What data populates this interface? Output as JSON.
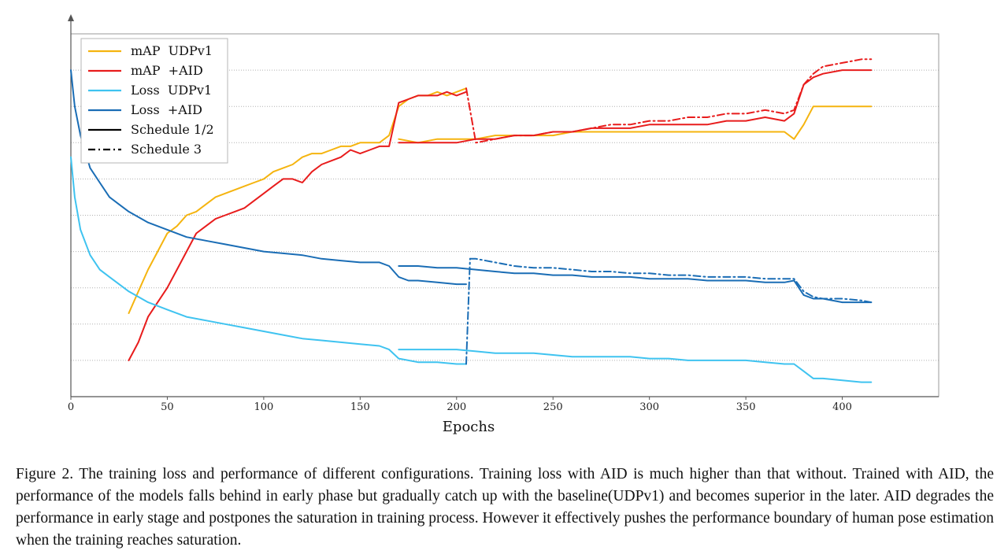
{
  "chart_data": {
    "type": "line",
    "xlabel": "Epochs",
    "ylabel": "",
    "xlim": [
      0,
      450
    ],
    "ylim": [
      0,
      10
    ],
    "xticks": [
      0,
      50,
      100,
      150,
      200,
      250,
      300,
      350,
      400
    ],
    "grid": "horizontal dotted",
    "legend": "top-left",
    "legend_entries": [
      {
        "label": "mAP  UDPv1",
        "color": "#f5b40f",
        "dash": "solid"
      },
      {
        "label": "mAP  +AID",
        "color": "#e81c1c",
        "dash": "solid"
      },
      {
        "label": "Loss  UDPv1",
        "color": "#3fc3f0",
        "dash": "solid"
      },
      {
        "label": "Loss  +AID",
        "color": "#1a6db5",
        "dash": "solid"
      },
      {
        "label": "Schedule 1/2",
        "color": "#000000",
        "dash": "solid"
      },
      {
        "label": "Schedule 3",
        "color": "#000000",
        "dash": "dashdot"
      }
    ],
    "series": [
      {
        "id": "map-udp-s12",
        "name": "mAP  UDPv1 (Schedule 1/2)",
        "color": "#f5b40f",
        "dash": "solid",
        "x": [
          30,
          35,
          40,
          45,
          50,
          55,
          60,
          65,
          70,
          75,
          80,
          85,
          90,
          95,
          100,
          105,
          110,
          115,
          120,
          125,
          130,
          135,
          140,
          145,
          150,
          155,
          160,
          165,
          170,
          175,
          180,
          185,
          190,
          195,
          200,
          205
        ],
        "y": [
          2.3,
          2.9,
          3.5,
          4.0,
          4.5,
          4.7,
          5.0,
          5.1,
          5.3,
          5.5,
          5.6,
          5.7,
          5.8,
          5.9,
          6.0,
          6.2,
          6.3,
          6.4,
          6.6,
          6.7,
          6.7,
          6.8,
          6.9,
          6.9,
          7.0,
          7.0,
          7.0,
          7.2,
          8.0,
          8.2,
          8.3,
          8.3,
          8.4,
          8.3,
          8.4,
          8.5
        ]
      },
      {
        "id": "map-udp-s3",
        "name": "mAP  UDPv1 (Schedule 3)",
        "color": "#f5b40f",
        "dash": "solid",
        "x": [
          170,
          180,
          190,
          200,
          210,
          220,
          230,
          240,
          250,
          260,
          270,
          280,
          290,
          300,
          310,
          320,
          330,
          340,
          350,
          360,
          370,
          375,
          380,
          385,
          390,
          400,
          410,
          415
        ],
        "y": [
          7.1,
          7.0,
          7.1,
          7.1,
          7.1,
          7.2,
          7.2,
          7.2,
          7.2,
          7.3,
          7.3,
          7.3,
          7.3,
          7.3,
          7.3,
          7.3,
          7.3,
          7.3,
          7.3,
          7.3,
          7.3,
          7.1,
          7.5,
          8.0,
          8.0,
          8.0,
          8.0,
          8.0
        ]
      },
      {
        "id": "map-aid-s12",
        "name": "mAP  +AID (Schedule 1/2)",
        "color": "#e81c1c",
        "dash": "solid",
        "x": [
          30,
          35,
          40,
          45,
          50,
          55,
          60,
          65,
          70,
          75,
          80,
          85,
          90,
          95,
          100,
          105,
          110,
          115,
          120,
          125,
          130,
          135,
          140,
          145,
          150,
          155,
          160,
          165,
          170,
          175,
          180,
          185,
          190,
          195,
          200,
          205
        ],
        "y": [
          1.0,
          1.5,
          2.2,
          2.6,
          3.0,
          3.5,
          4.0,
          4.5,
          4.7,
          4.9,
          5.0,
          5.1,
          5.2,
          5.4,
          5.6,
          5.8,
          6.0,
          6.0,
          5.9,
          6.2,
          6.4,
          6.5,
          6.6,
          6.8,
          6.7,
          6.8,
          6.9,
          6.9,
          8.1,
          8.2,
          8.3,
          8.3,
          8.3,
          8.4,
          8.3,
          8.4
        ]
      },
      {
        "id": "map-aid-s3",
        "name": "mAP  +AID (Schedule 3)",
        "color": "#e81c1c",
        "dash": "solid",
        "x": [
          170,
          180,
          190,
          200,
          210,
          220,
          230,
          240,
          250,
          260,
          270,
          280,
          290,
          300,
          310,
          320,
          330,
          340,
          350,
          360,
          370,
          375,
          380,
          385,
          390,
          400,
          410,
          415
        ],
        "y": [
          7.0,
          7.0,
          7.0,
          7.0,
          7.1,
          7.1,
          7.2,
          7.2,
          7.3,
          7.3,
          7.4,
          7.4,
          7.4,
          7.5,
          7.5,
          7.5,
          7.5,
          7.6,
          7.6,
          7.7,
          7.6,
          7.8,
          8.6,
          8.8,
          8.9,
          9.0,
          9.0,
          9.0
        ]
      },
      {
        "id": "map-aid-s3-dash",
        "name": "mAP  +AID (Schedule 3, dash-dot)",
        "color": "#e81c1c",
        "dash": "dashdot",
        "x": [
          205,
          210,
          220,
          230,
          240,
          250,
          260,
          270,
          280,
          290,
          300,
          310,
          320,
          330,
          340,
          350,
          360,
          370,
          375,
          380,
          385,
          390,
          400,
          410,
          415
        ],
        "y": [
          8.5,
          7.0,
          7.1,
          7.2,
          7.2,
          7.3,
          7.3,
          7.4,
          7.5,
          7.5,
          7.6,
          7.6,
          7.7,
          7.7,
          7.8,
          7.8,
          7.9,
          7.8,
          7.9,
          8.6,
          8.9,
          9.1,
          9.2,
          9.3,
          9.3
        ]
      },
      {
        "id": "loss-udp-s12",
        "name": "Loss  UDPv1 (Schedule 1/2)",
        "color": "#3fc3f0",
        "dash": "solid",
        "x": [
          0,
          2,
          5,
          10,
          15,
          20,
          25,
          30,
          40,
          50,
          60,
          70,
          80,
          90,
          100,
          110,
          120,
          130,
          140,
          150,
          160,
          165,
          170,
          175,
          180,
          190,
          200,
          205
        ],
        "y": [
          6.6,
          5.5,
          4.6,
          3.9,
          3.5,
          3.3,
          3.1,
          2.9,
          2.6,
          2.4,
          2.2,
          2.1,
          2.0,
          1.9,
          1.8,
          1.7,
          1.6,
          1.55,
          1.5,
          1.45,
          1.4,
          1.3,
          1.05,
          1.0,
          0.95,
          0.95,
          0.9,
          0.9
        ]
      },
      {
        "id": "loss-udp-s3",
        "name": "Loss  UDPv1 (Schedule 3)",
        "color": "#3fc3f0",
        "dash": "solid",
        "x": [
          170,
          180,
          190,
          200,
          210,
          220,
          230,
          240,
          250,
          260,
          270,
          280,
          290,
          300,
          310,
          320,
          330,
          340,
          350,
          360,
          370,
          375,
          380,
          385,
          390,
          400,
          410,
          415
        ],
        "y": [
          1.3,
          1.3,
          1.3,
          1.3,
          1.25,
          1.2,
          1.2,
          1.2,
          1.15,
          1.1,
          1.1,
          1.1,
          1.1,
          1.05,
          1.05,
          1.0,
          1.0,
          1.0,
          1.0,
          0.95,
          0.9,
          0.9,
          0.7,
          0.5,
          0.5,
          0.45,
          0.4,
          0.4
        ]
      },
      {
        "id": "loss-udp-s3-dash",
        "name": "Loss  UDPv1 (Schedule 3, dash-dot)",
        "color": "#1a6db5",
        "dash": "dashdot",
        "x": [
          205,
          207
        ],
        "y": [
          0.9,
          3.8
        ]
      },
      {
        "id": "loss-aid-s12",
        "name": "Loss  +AID (Schedule 1/2)",
        "color": "#1a6db5",
        "dash": "solid",
        "x": [
          0,
          2,
          5,
          10,
          15,
          20,
          25,
          30,
          40,
          50,
          60,
          70,
          80,
          90,
          100,
          110,
          120,
          130,
          140,
          150,
          160,
          165,
          170,
          175,
          180,
          190,
          200,
          205
        ],
        "y": [
          9.0,
          8.0,
          7.2,
          6.3,
          5.9,
          5.5,
          5.3,
          5.1,
          4.8,
          4.6,
          4.4,
          4.3,
          4.2,
          4.1,
          4.0,
          3.95,
          3.9,
          3.8,
          3.75,
          3.7,
          3.7,
          3.6,
          3.3,
          3.2,
          3.2,
          3.15,
          3.1,
          3.1
        ]
      },
      {
        "id": "loss-aid-s3",
        "name": "Loss  +AID (Schedule 3)",
        "color": "#1a6db5",
        "dash": "solid",
        "x": [
          170,
          180,
          190,
          200,
          210,
          220,
          230,
          240,
          250,
          260,
          270,
          280,
          290,
          300,
          310,
          320,
          330,
          340,
          350,
          360,
          370,
          375,
          380,
          385,
          390,
          400,
          410,
          415
        ],
        "y": [
          3.6,
          3.6,
          3.55,
          3.55,
          3.5,
          3.45,
          3.4,
          3.4,
          3.35,
          3.35,
          3.3,
          3.3,
          3.3,
          3.25,
          3.25,
          3.25,
          3.2,
          3.2,
          3.2,
          3.15,
          3.15,
          3.2,
          2.8,
          2.7,
          2.7,
          2.6,
          2.6,
          2.6
        ]
      },
      {
        "id": "loss-aid-s3-dash",
        "name": "Loss  +AID (Schedule 3, dash-dot)",
        "color": "#1a6db5",
        "dash": "dashdot",
        "x": [
          207,
          210,
          220,
          230,
          240,
          250,
          260,
          270,
          280,
          290,
          300,
          310,
          320,
          330,
          340,
          350,
          360,
          370,
          375,
          380,
          385,
          390,
          400,
          410,
          415
        ],
        "y": [
          3.8,
          3.8,
          3.7,
          3.6,
          3.55,
          3.55,
          3.5,
          3.45,
          3.45,
          3.4,
          3.4,
          3.35,
          3.35,
          3.3,
          3.3,
          3.3,
          3.25,
          3.25,
          3.25,
          2.9,
          2.75,
          2.7,
          2.7,
          2.65,
          2.6
        ]
      }
    ]
  },
  "caption": "Figure 2. The training loss and performance of different configurations. Training loss with AID is much higher than that without. Trained with AID, the performance of the models falls behind in early phase but gradually catch up with the baseline(UDPv1) and becomes superior in the later. AID degrades the performance in early stage and postpones the saturation in training process. However it effectively pushes the performance boundary of human pose estimation when the training reaches saturation."
}
